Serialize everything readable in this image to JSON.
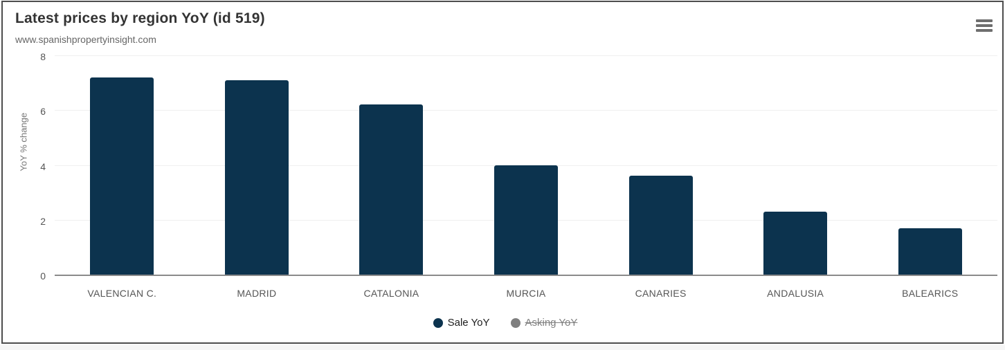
{
  "header": {
    "title": "Latest prices by region YoY (id 519)",
    "subtitle": "www.spanishpropertyinsight.com",
    "menu_icon": "hamburger-icon"
  },
  "colors": {
    "bar": "#0c334e",
    "disabled_series": "#7f7f7f",
    "axis_line": "#8a8a8a",
    "gridline": "#efefef",
    "title_text": "#333333",
    "subtitle_text": "#666666",
    "axis_text": "#555555",
    "card_border": "#4d4d4d"
  },
  "chart_data": {
    "type": "bar",
    "title": "Latest prices by region YoY (id 519)",
    "subtitle": "www.spanishpropertyinsight.com",
    "categories": [
      "VALENCIAN C.",
      "MADRID",
      "CATALONIA",
      "MURCIA",
      "CANARIES",
      "ANDALUSIA",
      "BALEARICS"
    ],
    "series": [
      {
        "name": "Sale YoY",
        "color": "#0c334e",
        "visible": true,
        "values": [
          7.2,
          7.1,
          6.2,
          4.0,
          3.6,
          2.3,
          1.7
        ]
      },
      {
        "name": "Asking YoY",
        "color": "#7f7f7f",
        "visible": false
      }
    ],
    "xlabel": "",
    "ylabel": "YoY % change",
    "ylim": [
      0,
      8
    ],
    "yticks": [
      0,
      2,
      4,
      6,
      8
    ],
    "grid": true,
    "legend_position": "bottom-center"
  }
}
